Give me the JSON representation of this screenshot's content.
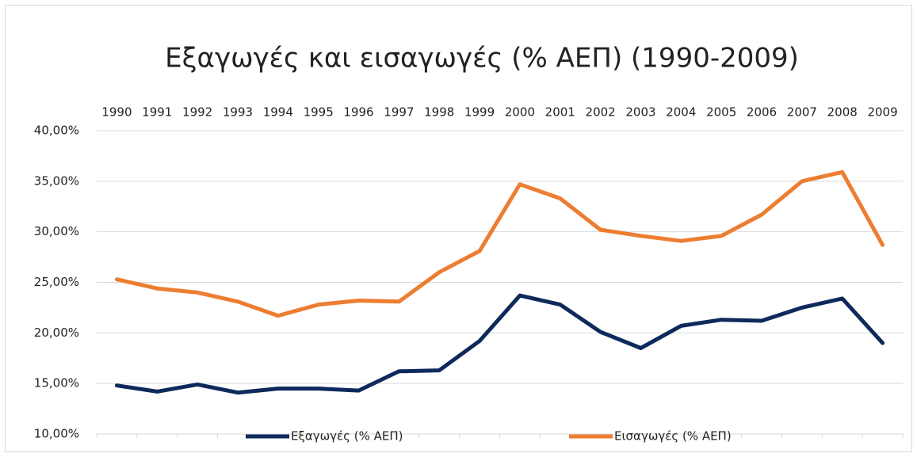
{
  "chart_data": {
    "type": "line",
    "title": "Εξαγωγές και εισαγωγές (% ΑΕΠ) (1990-2009)",
    "categories": [
      "1990",
      "1991",
      "1992",
      "1993",
      "1994",
      "1995",
      "1996",
      "1997",
      "1998",
      "1999",
      "2000",
      "2001",
      "2002",
      "2003",
      "2004",
      "2005",
      "2006",
      "2007",
      "2008",
      "2009"
    ],
    "series": [
      {
        "name": "Εξαγωγές (% ΑΕΠ)",
        "color": "#0e2a5c",
        "values": [
          14.8,
          14.2,
          14.9,
          14.1,
          14.5,
          14.5,
          14.3,
          16.2,
          16.3,
          19.2,
          23.7,
          22.8,
          20.1,
          18.5,
          20.7,
          21.3,
          21.2,
          22.5,
          23.4,
          19.0
        ]
      },
      {
        "name": "Εισαγωγές (% ΑΕΠ)",
        "color": "#ed7d31",
        "values": [
          25.3,
          24.4,
          24.0,
          23.1,
          21.7,
          22.8,
          23.2,
          23.1,
          26.0,
          28.1,
          34.7,
          33.3,
          30.2,
          29.6,
          29.1,
          29.6,
          31.7,
          35.0,
          35.9,
          28.7
        ]
      }
    ],
    "ylim": [
      10,
      40
    ],
    "yticks": [
      {
        "value": 10,
        "label": "10,00%"
      },
      {
        "value": 15,
        "label": "15,00%"
      },
      {
        "value": 20,
        "label": "20,00%"
      },
      {
        "value": 25,
        "label": "25,00%"
      },
      {
        "value": 30,
        "label": "30,00%"
      },
      {
        "value": 35,
        "label": "35,00%"
      },
      {
        "value": 40,
        "label": "40,00%"
      }
    ],
    "grid": true,
    "legend": "bottom"
  }
}
